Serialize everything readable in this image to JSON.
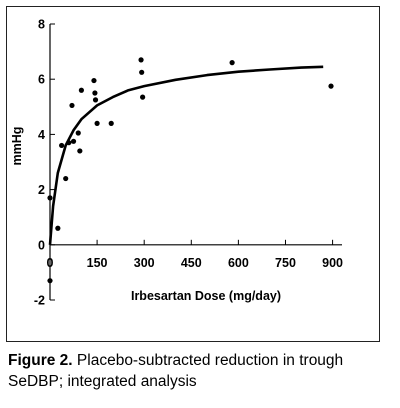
{
  "chart_data": {
    "type": "scatter",
    "xlabel": "Irbesartan Dose (mg/day)",
    "ylabel": "mmHg",
    "xlim": [
      0,
      930
    ],
    "ylim": [
      -2,
      8
    ],
    "x_ticks": [
      "0",
      "150",
      "300",
      "450",
      "600",
      "750",
      "900"
    ],
    "y_ticks": [
      "-2",
      "0",
      "2",
      "4",
      "6",
      "8"
    ],
    "grid": false,
    "series": [
      {
        "type": "scatter",
        "points": [
          [
            0,
            -1.3
          ],
          [
            0,
            1.7
          ],
          [
            25,
            0.6
          ],
          [
            37,
            3.6
          ],
          [
            50,
            2.4
          ],
          [
            60,
            3.7
          ],
          [
            70,
            5.05
          ],
          [
            75,
            3.75
          ],
          [
            90,
            4.05
          ],
          [
            95,
            3.4
          ],
          [
            100,
            5.6
          ],
          [
            140,
            5.95
          ],
          [
            143,
            5.5
          ],
          [
            145,
            5.25
          ],
          [
            150,
            4.4
          ],
          [
            195,
            4.4
          ],
          [
            290,
            6.7
          ],
          [
            292,
            6.25
          ],
          [
            295,
            5.35
          ],
          [
            580,
            6.6
          ],
          [
            895,
            5.75
          ]
        ]
      },
      {
        "type": "line",
        "x": [
          0,
          10,
          25,
          50,
          75,
          100,
          150,
          200,
          250,
          300,
          400,
          500,
          600,
          700,
          800,
          870
        ],
        "y": [
          0,
          1.4,
          2.6,
          3.6,
          4.15,
          4.55,
          5.05,
          5.35,
          5.6,
          5.75,
          5.98,
          6.15,
          6.27,
          6.35,
          6.42,
          6.45
        ]
      }
    ]
  },
  "caption": {
    "label": "Figure 2.",
    "text": "Placebo-subtracted reduction in trough SeDBP; integrated analysis"
  }
}
